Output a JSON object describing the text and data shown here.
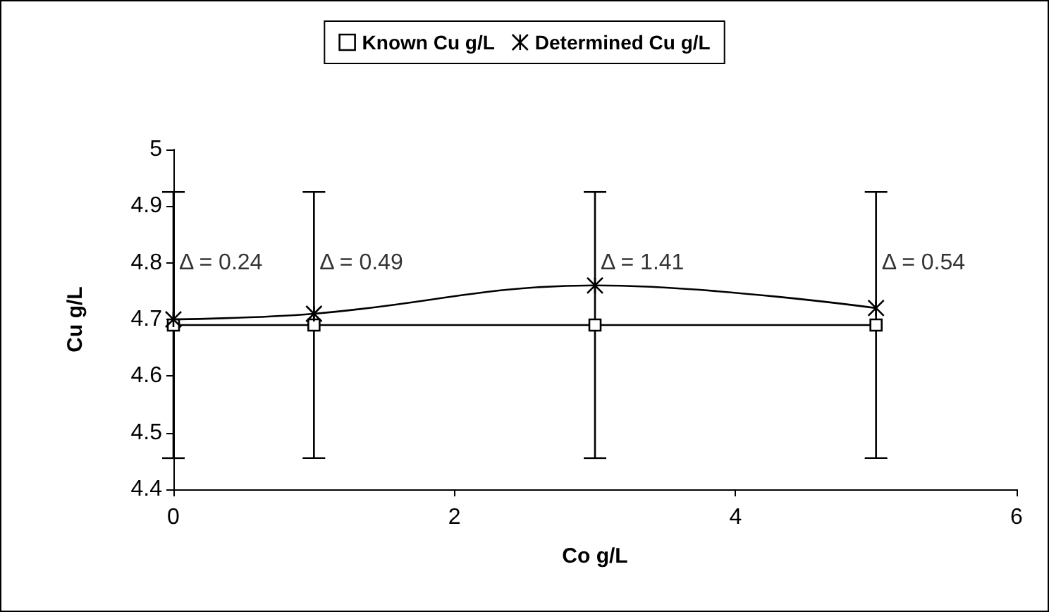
{
  "chart_data": {
    "type": "line",
    "xlabel": "Co g/L",
    "ylabel": "Cu g/L",
    "x": [
      0,
      1,
      3,
      5
    ],
    "series": [
      {
        "name": "Known Cu g/L",
        "color": "#000000",
        "values": [
          4.69,
          4.69,
          4.69,
          4.69
        ],
        "errors": [
          0.235,
          0.235,
          0.235,
          0.235
        ],
        "marker": "square"
      },
      {
        "name": "Determined Cu g/L",
        "color": "#000000",
        "values": [
          4.7,
          4.71,
          4.76,
          4.72
        ],
        "marker": "cross"
      }
    ],
    "annotations": [
      {
        "text": "Δ = 0.24",
        "x": 0,
        "y": 4.8
      },
      {
        "text": "Δ = 0.49",
        "x": 1,
        "y": 4.8
      },
      {
        "text": "Δ = 1.41",
        "x": 3,
        "y": 4.8
      },
      {
        "text": "Δ = 0.54",
        "x": 5,
        "y": 4.8
      }
    ],
    "xlim": [
      0,
      6
    ],
    "xticks": [
      0,
      2,
      4,
      6
    ],
    "ylim": [
      4.4,
      5
    ],
    "yticks": [
      4.4,
      4.5,
      4.6,
      4.7,
      4.8,
      4.9,
      5
    ],
    "grid": false,
    "legend": "top",
    "line_style": "solid"
  }
}
